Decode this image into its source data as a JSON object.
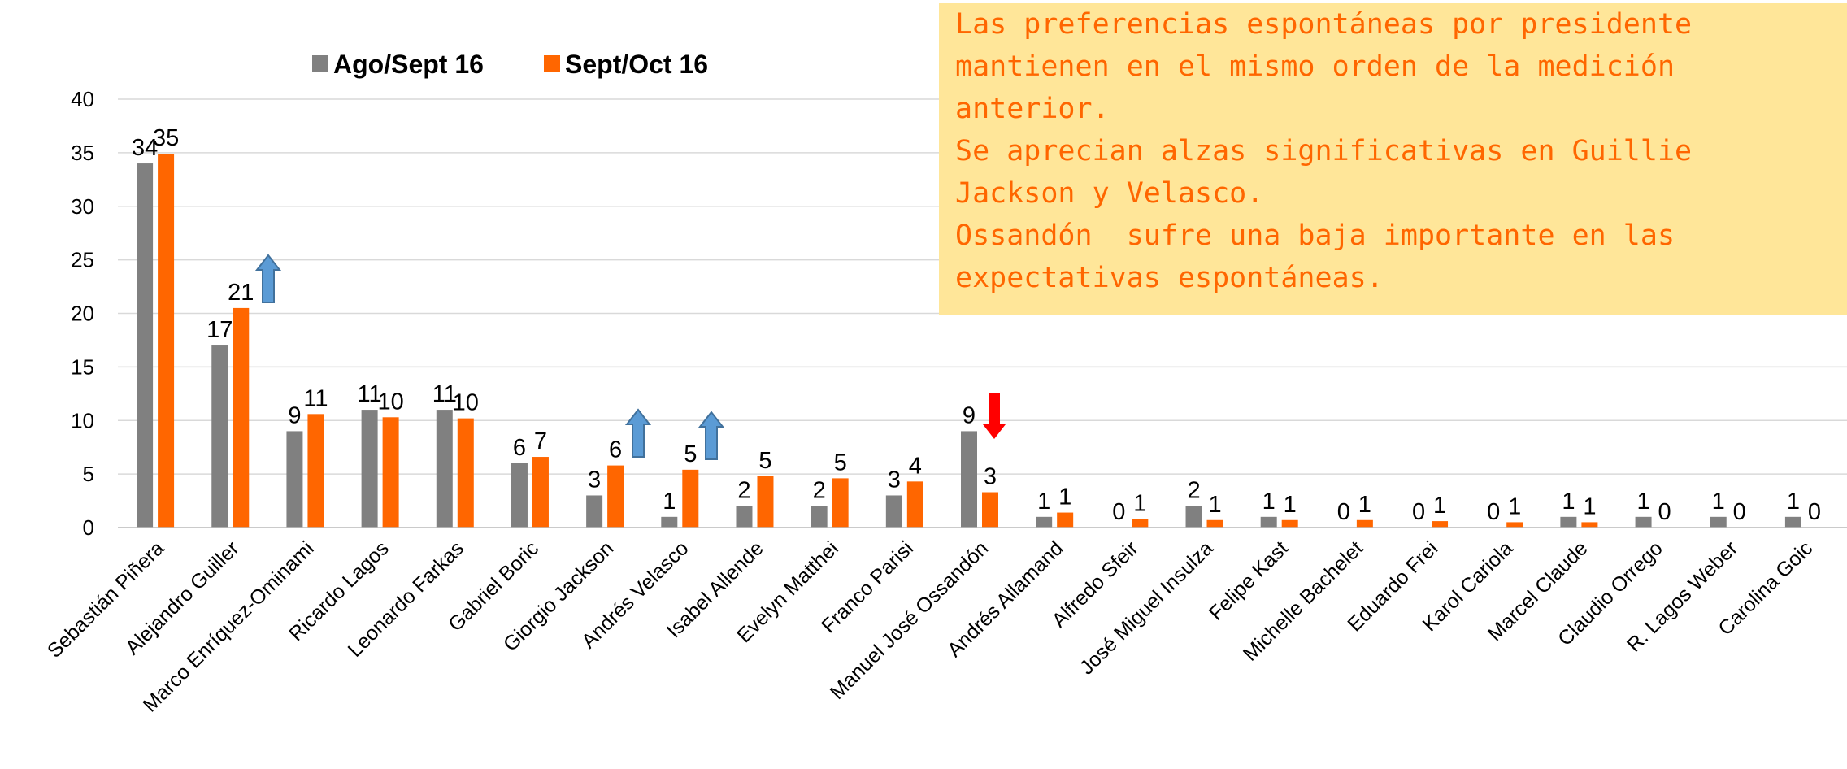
{
  "chart_data": {
    "type": "bar",
    "categories": [
      "Sebastián Piñera",
      "Alejandro Guiller",
      "Marco Enríquez-Ominami",
      "Ricardo Lagos",
      "Leonardo Farkas",
      "Gabriel Boric",
      "Giorgio Jackson",
      "Andrés Velasco",
      "Isabel Allende",
      "Evelyn Matthei",
      "Franco Parisi",
      "Manuel José Ossandón",
      "Andrés Allamand",
      "Alfredo Sfeir",
      "José Miguel Insulza",
      "Felipe Kast",
      "Michelle Bachelet",
      "Eduardo Frei",
      "Karol Cariola",
      "Marcel Claude",
      "Claudio Orrego",
      "R. Lagos Weber",
      "Carolina Goic"
    ],
    "series": [
      {
        "name": "Ago/Sept 16",
        "color": "#808080",
        "values": [
          34,
          17,
          9,
          11,
          11,
          6,
          3,
          1,
          2,
          2,
          3,
          9,
          1,
          0,
          2,
          1,
          0,
          0,
          0,
          1,
          1,
          1,
          1
        ]
      },
      {
        "name": "Sept/Oct 16",
        "color": "#ff6600",
        "values": [
          34.9,
          20.5,
          10.6,
          10.3,
          10.2,
          6.6,
          5.8,
          5.4,
          4.8,
          4.6,
          4.3,
          3.3,
          1.4,
          0.8,
          0.7,
          0.7,
          0.7,
          0.6,
          0.5,
          0.5,
          0,
          0,
          0
        ],
        "value_labels": [
          "35",
          "21",
          "11",
          "10",
          "10",
          "7",
          "6",
          "5",
          "5",
          "5",
          "4",
          "3",
          "1",
          "1",
          "1",
          "1",
          "1",
          "1",
          "1",
          "1",
          "0",
          "0",
          "0"
        ]
      }
    ],
    "ylim": [
      0,
      40
    ],
    "yticks": [
      0,
      5,
      10,
      15,
      20,
      25,
      30,
      35,
      40
    ],
    "grid": true,
    "legend": "top",
    "annotation": [
      "Las preferencias espontáneas por presidente",
      "mantienen en el mismo orden de la medición",
      "anterior.",
      "Se aprecian alzas significativas en Guillie",
      "Jackson y Velasco.",
      "Ossandón  sufre una baja importante en las",
      "expectativas espontáneas."
    ]
  }
}
